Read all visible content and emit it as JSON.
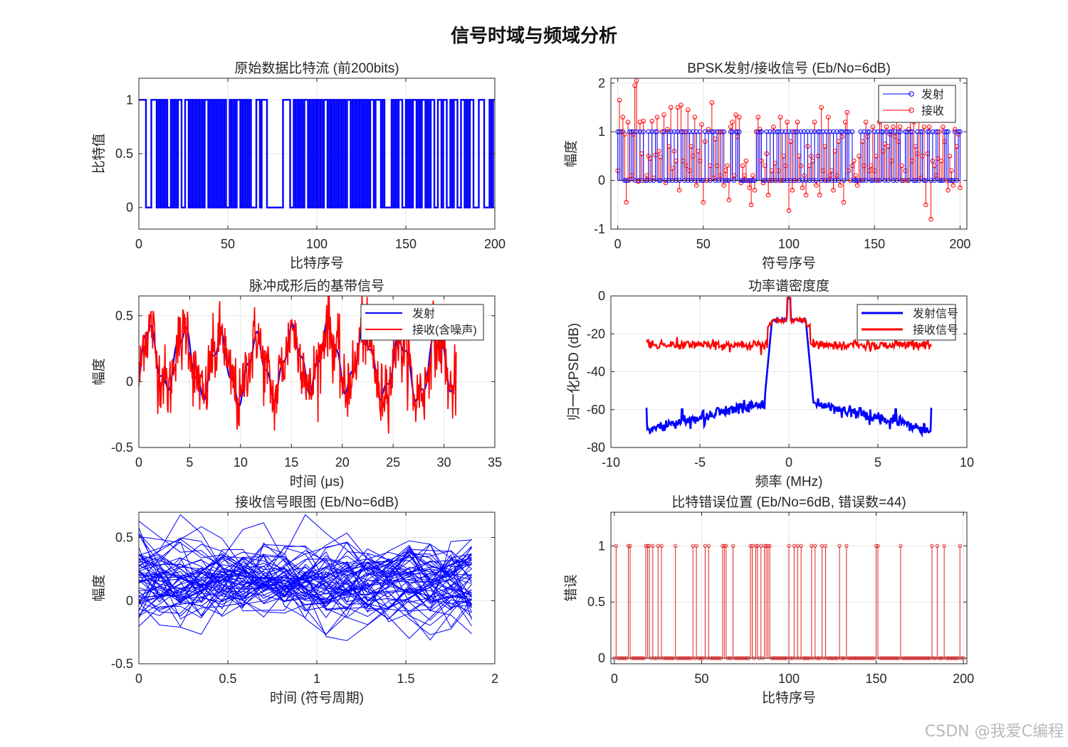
{
  "figure": {
    "title": "信号时域与频域分析",
    "watermark": "CSDN @我爱C编程"
  },
  "chart_data": [
    {
      "id": "bits",
      "type": "line",
      "title": "原始数据比特流 (前200bits)",
      "xlabel": "比特序号",
      "ylabel": "比特值",
      "xlim": [
        0,
        200
      ],
      "ylim": [
        -0.2,
        1.2
      ],
      "xticks": [
        0,
        50,
        100,
        150,
        200
      ],
      "yticks": [
        0,
        0.5,
        1
      ],
      "grid": true,
      "colors": {
        "line": "#0000ff"
      },
      "bits": [
        1,
        1,
        1,
        1,
        0,
        0,
        0,
        1,
        1,
        1,
        0,
        1,
        0,
        1,
        0,
        1,
        0,
        0,
        1,
        0,
        1,
        0,
        1,
        1,
        0,
        0,
        1,
        1,
        0,
        1,
        0,
        1,
        0,
        1,
        0,
        1,
        0,
        1,
        1,
        0,
        1,
        0,
        1,
        0,
        1,
        0,
        1,
        0,
        1,
        0,
        0,
        1,
        0,
        1,
        0,
        1,
        1,
        0,
        1,
        0,
        1,
        0,
        1,
        0,
        0,
        0,
        1,
        1,
        0,
        1,
        1,
        1,
        0,
        0,
        0,
        0,
        0,
        0,
        0,
        0,
        0,
        1,
        1,
        1,
        1,
        0,
        0,
        1,
        0,
        1,
        0,
        1,
        0,
        1,
        1,
        0,
        1,
        0,
        1,
        0,
        1,
        0,
        1,
        0,
        1,
        1,
        0,
        1,
        0,
        1,
        0,
        1,
        0,
        1,
        0,
        1,
        0,
        1,
        1,
        0,
        1,
        0,
        1,
        0,
        1,
        0,
        1,
        0,
        1,
        0,
        1,
        1,
        0,
        1,
        1,
        1,
        0,
        1,
        0,
        0,
        0,
        0,
        1,
        0,
        1,
        0,
        1,
        1,
        0,
        0,
        1,
        0,
        1,
        0,
        1,
        1,
        0,
        1,
        0,
        1,
        1,
        0,
        1,
        0,
        1,
        1,
        0,
        0,
        1,
        1,
        0,
        1,
        1,
        0,
        0,
        1,
        0,
        1,
        1,
        0,
        0,
        1,
        1,
        0,
        1,
        0,
        1,
        1,
        0,
        0,
        0,
        1,
        1,
        1,
        0,
        0,
        0,
        1,
        0,
        1
      ]
    },
    {
      "id": "bpsk",
      "type": "stem",
      "title": "BPSK发射/接收信号 (Eb/No=6dB)",
      "xlabel": "符号序号",
      "ylabel": "幅度",
      "xlim": [
        -4,
        204
      ],
      "ylim": [
        -1,
        2.1
      ],
      "xticks": [
        0,
        50,
        100,
        150,
        200
      ],
      "yticks": [
        -1,
        0,
        1,
        2
      ],
      "grid": true,
      "legend": {
        "position": "top-right",
        "entries": [
          "发射",
          "接收"
        ]
      },
      "colors": {
        "tx": "#0000ff",
        "rx": "#ff0000"
      },
      "n": 201,
      "tx_note": "transmitted symbols equal the bit stream (0/1)",
      "rx": [
        0.2,
        1.65,
        1.0,
        1.3,
        0.95,
        -0.45,
        1.2,
        0.02,
        0.1,
        0.95,
        1.95,
        2.05,
        -0.02,
        1.2,
        0.55,
        1.22,
        0.0,
        0.1,
        0.5,
        0.45,
        1.22,
        0.05,
        0.52,
        1.3,
        0.6,
        0.48,
        1.0,
        1.35,
        -0.05,
        1.05,
        0.7,
        1.5,
        0.25,
        0.6,
        0.4,
        1.5,
        -0.2,
        1.55,
        0.4,
        1.0,
        0.3,
        1.45,
        0.2,
        0.7,
        0.5,
        1.3,
        -0.1,
        0.6,
        0.4,
        1.15,
        -0.45,
        0.8,
        0.0,
        1.05,
        0.3,
        1.6,
        0.05,
        0.85,
        0.3,
        1.0,
        0.1,
        1.0,
        -0.1,
        0.2,
        0.3,
        -0.4,
        1.1,
        1.2,
        0.1,
        1.35,
        0.9,
        1.3,
        -0.05,
        0.3,
        0.1,
        0.4,
        0.0,
        -0.15,
        -0.5,
        0.1,
        -0.2,
        1.0,
        1.3,
        1.05,
        0.4,
        -0.05,
        0.3,
        0.55,
        -0.3,
        0.0,
        0.2,
        1.1,
        0.35,
        0.0,
        0.2,
        1.3,
        0.0,
        0.5,
        0.3,
        1.2,
        -0.62,
        0.8,
        -0.2,
        1.0,
        0.0,
        1.2,
        0.5,
        0.3,
        -0.15,
        0.1,
        -0.3,
        0.7,
        0.3,
        0.5,
        0.4,
        1.2,
        -0.1,
        0.5,
        -0.3,
        1.5,
        0.2,
        0.7,
        0.0,
        1.3,
        0.1,
        0.2,
        -0.2,
        0.6,
        0.1,
        0.8,
        -0.1,
        0.9,
        -0.45,
        1.2,
        1.4,
        0.2,
        0.0,
        0.3,
        0.4,
        0.1,
        -0.1,
        0.5,
        0.0,
        0.8,
        0.3,
        1.2,
        0.9,
        0.2,
        0.3,
        1.1,
        0.2,
        0.5,
        0.0,
        1.2,
        1.3,
        0.6,
        0.75,
        1.1,
        0.7,
        0.95,
        0.4,
        1.1,
        0.9,
        1.35,
        0.8,
        1.1,
        0.3,
        0.0,
        0.2,
        0.0,
        1.05,
        1.9,
        0.4,
        1.2,
        0.7,
        0.55,
        1.25,
        0.05,
        0.5,
        1.1,
        -0.5,
        0.55,
        1.1,
        -0.8,
        0.4,
        0.3,
        0.1,
        0.45,
        1.0,
        0.4,
        1.1,
        0.8,
        0.0,
        -0.2,
        0.5,
        0.2,
        -0.1,
        1.05,
        0.7,
        0.95,
        -0.15,
        0.0,
        1.2
      ]
    },
    {
      "id": "baseband",
      "type": "line",
      "title": "脉冲成形后的基带信号",
      "xlabel": "时间 (μs)",
      "ylabel": "幅度",
      "xlim": [
        0,
        35
      ],
      "ylim": [
        -0.5,
        0.65
      ],
      "xticks": [
        0,
        5,
        10,
        15,
        20,
        25,
        30,
        35
      ],
      "yticks": [
        -0.5,
        0,
        0.5
      ],
      "grid": true,
      "legend": {
        "position": "top-right",
        "entries": [
          "发射",
          "接收(含噪声)"
        ]
      },
      "colors": {
        "tx": "#0000ff",
        "rx": "#ff0000"
      },
      "t_end": 31.2,
      "tx_period_us": 3.55
    },
    {
      "id": "psd",
      "type": "line",
      "title": "功率谱密度度",
      "xlabel": "频率 (MHz)",
      "ylabel": "归一化PSD (dB)",
      "xlim": [
        -10,
        10
      ],
      "ylim": [
        -80,
        0
      ],
      "xticks": [
        -10,
        -5,
        0,
        5,
        10
      ],
      "yticks": [
        -80,
        -60,
        -40,
        -20,
        0
      ],
      "grid": true,
      "legend": {
        "position": "top-right",
        "entries": [
          "发射信号",
          "接收信号"
        ]
      },
      "colors": {
        "tx": "#0000ff",
        "rx": "#ff0000"
      },
      "f_range": [
        -8,
        8
      ],
      "tx_floor_db": -71,
      "rx_floor_db": -26,
      "main_lobe_db": -13,
      "spur_freqs": [
        -6,
        -4,
        4,
        6
      ]
    },
    {
      "id": "eye",
      "type": "line",
      "title": "接收信号眼图 (Eb/No=6dB)",
      "xlabel": "时间 (符号周期)",
      "ylabel": "幅度",
      "xlim": [
        0,
        2
      ],
      "ylim": [
        -0.5,
        0.7
      ],
      "xticks": [
        0,
        0.5,
        1,
        1.5,
        2
      ],
      "yticks": [
        -0.5,
        0,
        0.5
      ],
      "grid": true,
      "colors": {
        "line": "#0000ff"
      },
      "t_end": 1.87,
      "traces": 60
    },
    {
      "id": "errors",
      "type": "stem",
      "title": "比特错误位置 (Eb/No=6dB, 错误数=44)",
      "xlabel": "比特序号",
      "ylabel": "错误",
      "xlim": [
        -2,
        202
      ],
      "ylim": [
        -0.05,
        1.3
      ],
      "xticks": [
        0,
        50,
        100,
        150,
        200
      ],
      "yticks": [
        0,
        0.5,
        1
      ],
      "grid": true,
      "colors": {
        "line": "#e02020"
      },
      "n": 201,
      "error_count": 44,
      "error_positions": [
        1,
        8,
        9,
        18,
        19,
        20,
        22,
        25,
        27,
        35,
        45,
        47,
        52,
        54,
        62,
        63,
        64,
        68,
        78,
        79,
        81,
        82,
        84,
        86,
        87,
        88,
        89,
        100,
        103,
        105,
        107,
        113,
        115,
        119,
        121,
        129,
        133,
        150,
        151,
        164,
        182,
        185,
        189,
        198
      ]
    }
  ]
}
